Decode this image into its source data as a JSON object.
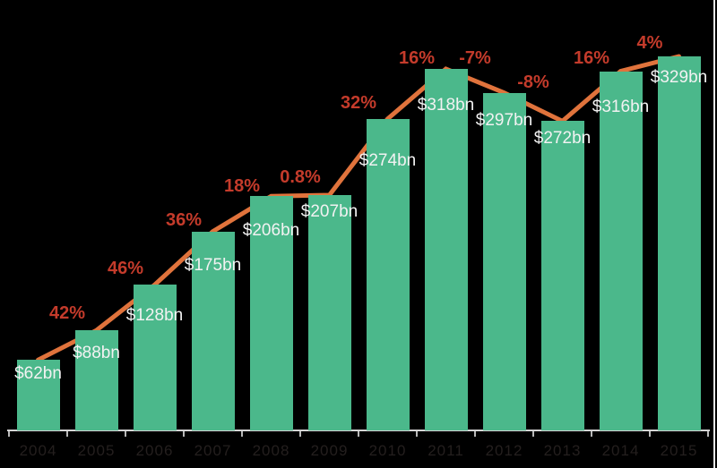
{
  "chart_data": {
    "type": "bar",
    "title": "",
    "xlabel": "",
    "ylabel": "",
    "categories": [
      "2004",
      "2005",
      "2006",
      "2007",
      "2008",
      "2009",
      "2010",
      "2011",
      "2012",
      "2013",
      "2014",
      "2015"
    ],
    "values": [
      62,
      88,
      128,
      175,
      206,
      207,
      274,
      318,
      297,
      272,
      316,
      329
    ],
    "bar_value_labels": [
      "$62bn",
      "$88bn",
      "$128bn",
      "$175bn",
      "$206bn",
      "$207bn",
      "$274bn",
      "$318bn",
      "$297bn",
      "$272bn",
      "$316bn",
      "$329bn"
    ],
    "growth_line": {
      "description": "line connecting the tops of the bars",
      "segment_labels": [
        "42%",
        "46%",
        "36%",
        "18%",
        "0.8%",
        "32%",
        "16%",
        "-7%",
        "-8%",
        "16%",
        "4%"
      ]
    },
    "ylim": [
      0,
      329
    ],
    "grid": false,
    "legend": "none",
    "colors": {
      "background": "#000000",
      "bar": "#4BB88B",
      "line": "#E0733C",
      "growth_label": "#C43B2B",
      "value_label": "#F2F2F2",
      "axis": "#D4D4D4",
      "tick": "#B9B9B9",
      "year_label": "#241F1E"
    }
  }
}
